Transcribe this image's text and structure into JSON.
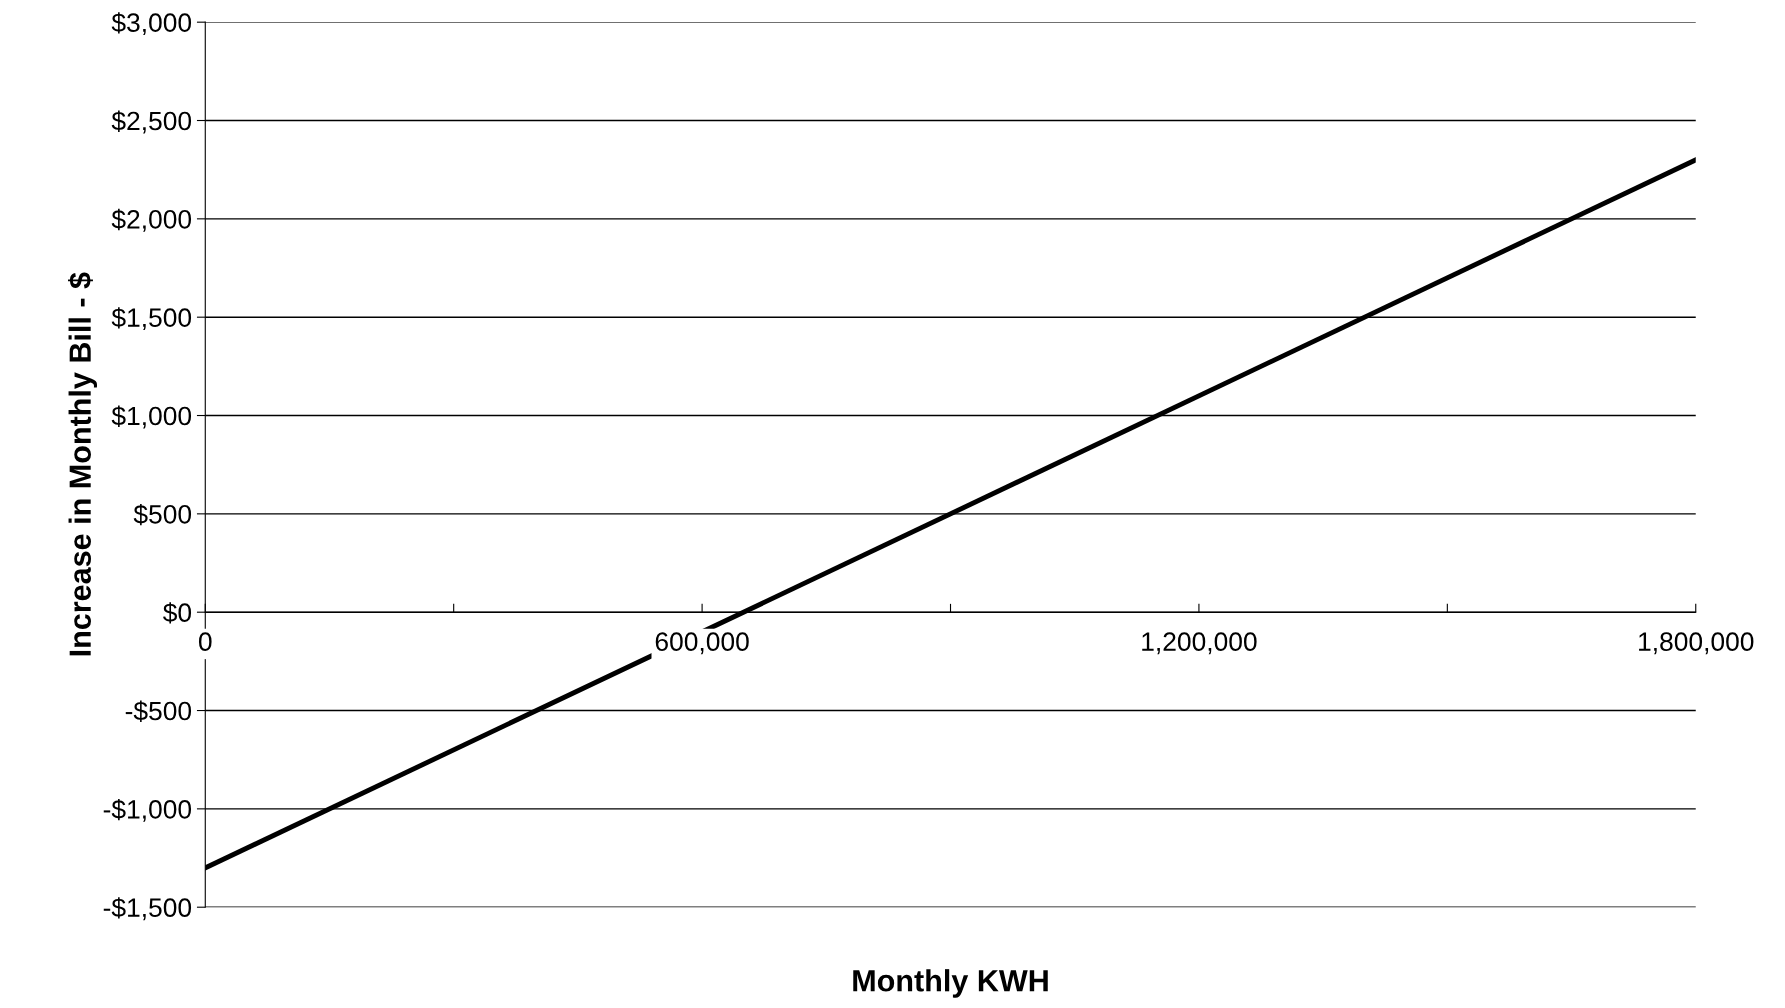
{
  "chart_data": {
    "type": "line",
    "xlabel": "Monthly KWH",
    "ylabel": "Increase in Monthly Bill - $",
    "x": [
      0,
      1800000
    ],
    "series": [
      {
        "color": "#000000",
        "values": [
          -1300,
          2300
        ]
      }
    ],
    "xlim": [
      0,
      1800000
    ],
    "xticks": [
      0,
      {
        "value": 300000,
        "label": null
      },
      {
        "value": 600000,
        "label": "600,000"
      },
      {
        "value": 900000,
        "label": null
      },
      {
        "value": 1200000,
        "label": "1,200,000"
      },
      {
        "value": 1500000,
        "label": null
      },
      {
        "value": 1800000,
        "label": "1,800,000"
      }
    ],
    "ylim": [
      -1500,
      3000
    ],
    "yticks": [
      {
        "value": -1500,
        "label": "-$1,500"
      },
      {
        "value": -1000,
        "label": "-$1,000"
      },
      {
        "value": -500,
        "label": "-$500"
      },
      {
        "value": 0,
        "label": "$0"
      },
      {
        "value": 500,
        "label": "$500"
      },
      {
        "value": 1000,
        "label": "$1,000"
      },
      {
        "value": 1500,
        "label": "$1,500"
      },
      {
        "value": 2000,
        "label": "$2,000"
      },
      {
        "value": 2500,
        "label": "$2,500"
      },
      {
        "value": 3000,
        "label": "$3,000"
      }
    ],
    "grid": "y",
    "marker": "none",
    "line_style": "solid"
  }
}
